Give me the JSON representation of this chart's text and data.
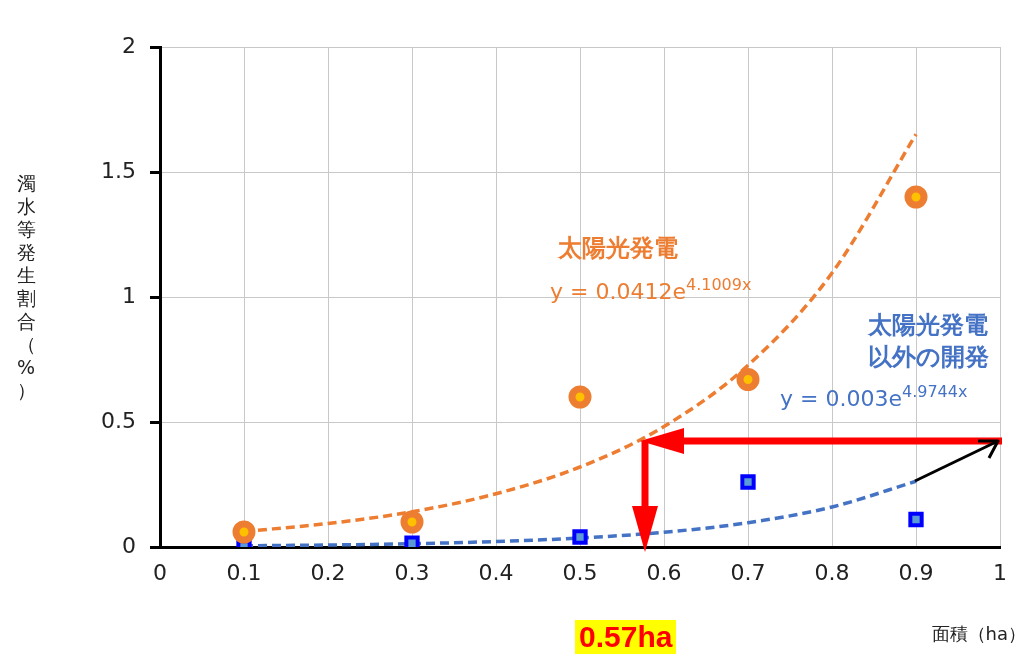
{
  "chart_data": {
    "type": "scatter",
    "xlabel": "面積（ha）",
    "ylabel": "濁水等発生割合（%）",
    "xlim": [
      0,
      1
    ],
    "xticks": [
      0,
      0.1,
      0.2,
      0.3,
      0.4,
      0.5,
      0.6,
      0.7,
      0.8,
      0.9,
      1
    ],
    "ylim": [
      0,
      2
    ],
    "yticks": [
      0,
      0.5,
      1,
      1.5,
      2
    ],
    "grid": true,
    "legend": false,
    "series": [
      {
        "color": "#ed7d31",
        "marker": "circle",
        "x": [
          0.1,
          0.3,
          0.5,
          0.7,
          0.9
        ],
        "values": [
          0.06,
          0.1,
          0.6,
          0.67,
          1.4
        ]
      },
      {
        "color": "#0000ff",
        "marker": "square",
        "x": [
          0.1,
          0.3,
          0.5,
          0.7,
          0.9
        ],
        "values": [
          0.0,
          0.015,
          0.04,
          0.26,
          0.11
        ]
      },
      {
        "name": "太陽光発電",
        "type": "line",
        "color": "#ed7d31",
        "line_style": "dashed",
        "marker": "none",
        "x": [
          0.1,
          0.2,
          0.3,
          0.4,
          0.5,
          0.6,
          0.7,
          0.8,
          0.9
        ],
        "values": [
          0.062,
          0.094,
          0.141,
          0.213,
          0.32,
          0.482,
          0.727,
          1.096,
          1.651
        ]
      },
      {
        "name": "太陽光発電以外の開発",
        "type": "line",
        "color": "#4472c4",
        "line_style": "dashed",
        "marker": "none",
        "x": [
          0.1,
          0.2,
          0.3,
          0.4,
          0.5,
          0.6,
          0.7,
          0.8,
          0.9
        ],
        "values": [
          0.005,
          0.008,
          0.013,
          0.022,
          0.036,
          0.059,
          0.097,
          0.16,
          0.263
        ]
      }
    ],
    "annotations": [
      "y = 0.0412e$^{4.1009x}$",
      "y = 0.003e$^{4.9744x}$",
      "0.57ha"
    ]
  }
}
